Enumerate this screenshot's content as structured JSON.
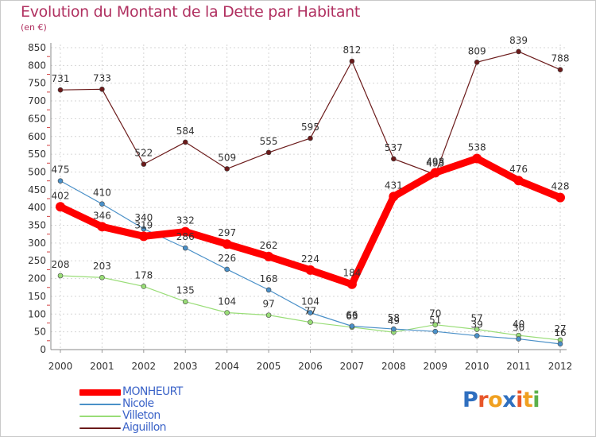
{
  "chart_data": {
    "type": "line",
    "title": "Evolution du Montant de la Dette par Habitant",
    "subtitle": "(en €)",
    "x": [
      "2000",
      "2001",
      "2002",
      "2003",
      "2004",
      "2005",
      "2006",
      "2007",
      "2008",
      "2009",
      "2010",
      "2011",
      "2012"
    ],
    "ylim": [
      0,
      850
    ],
    "yticks": [
      0,
      50,
      100,
      150,
      200,
      250,
      300,
      350,
      400,
      450,
      500,
      550,
      600,
      650,
      700,
      750,
      800,
      850
    ],
    "grid": true,
    "legend_position": "bottom-left",
    "series": [
      {
        "name": "Aiguillon",
        "color": "#6b1a1a",
        "values": [
          731,
          733,
          522,
          584,
          509,
          555,
          595,
          812,
          537,
          493,
          809,
          839,
          788
        ]
      },
      {
        "name": "Villeton",
        "color": "#99dd77",
        "values": [
          208,
          203,
          178,
          135,
          104,
          97,
          77,
          63,
          49,
          70,
          57,
          40,
          27
        ]
      },
      {
        "name": "Nicole",
        "color": "#4a90c8",
        "values": [
          475,
          410,
          340,
          286,
          226,
          168,
          104,
          66,
          58,
          51,
          39,
          30,
          16
        ]
      },
      {
        "name": "MONHEURT",
        "color": "#ff0000",
        "values": [
          402,
          346,
          319,
          332,
          297,
          262,
          224,
          184,
          431,
          498,
          538,
          476,
          428
        ]
      }
    ],
    "legend_order": [
      "MONHEURT",
      "Nicole",
      "Villeton",
      "Aiguillon"
    ],
    "brand": {
      "letters": [
        "P",
        "r",
        "o",
        "x",
        "i",
        "t",
        "i"
      ],
      "colors": [
        "#2f6fbf",
        "#e8562a",
        "#f0a020",
        "#2f6fbf",
        "#e8562a",
        "#f0a020",
        "#5bb04b"
      ]
    }
  }
}
